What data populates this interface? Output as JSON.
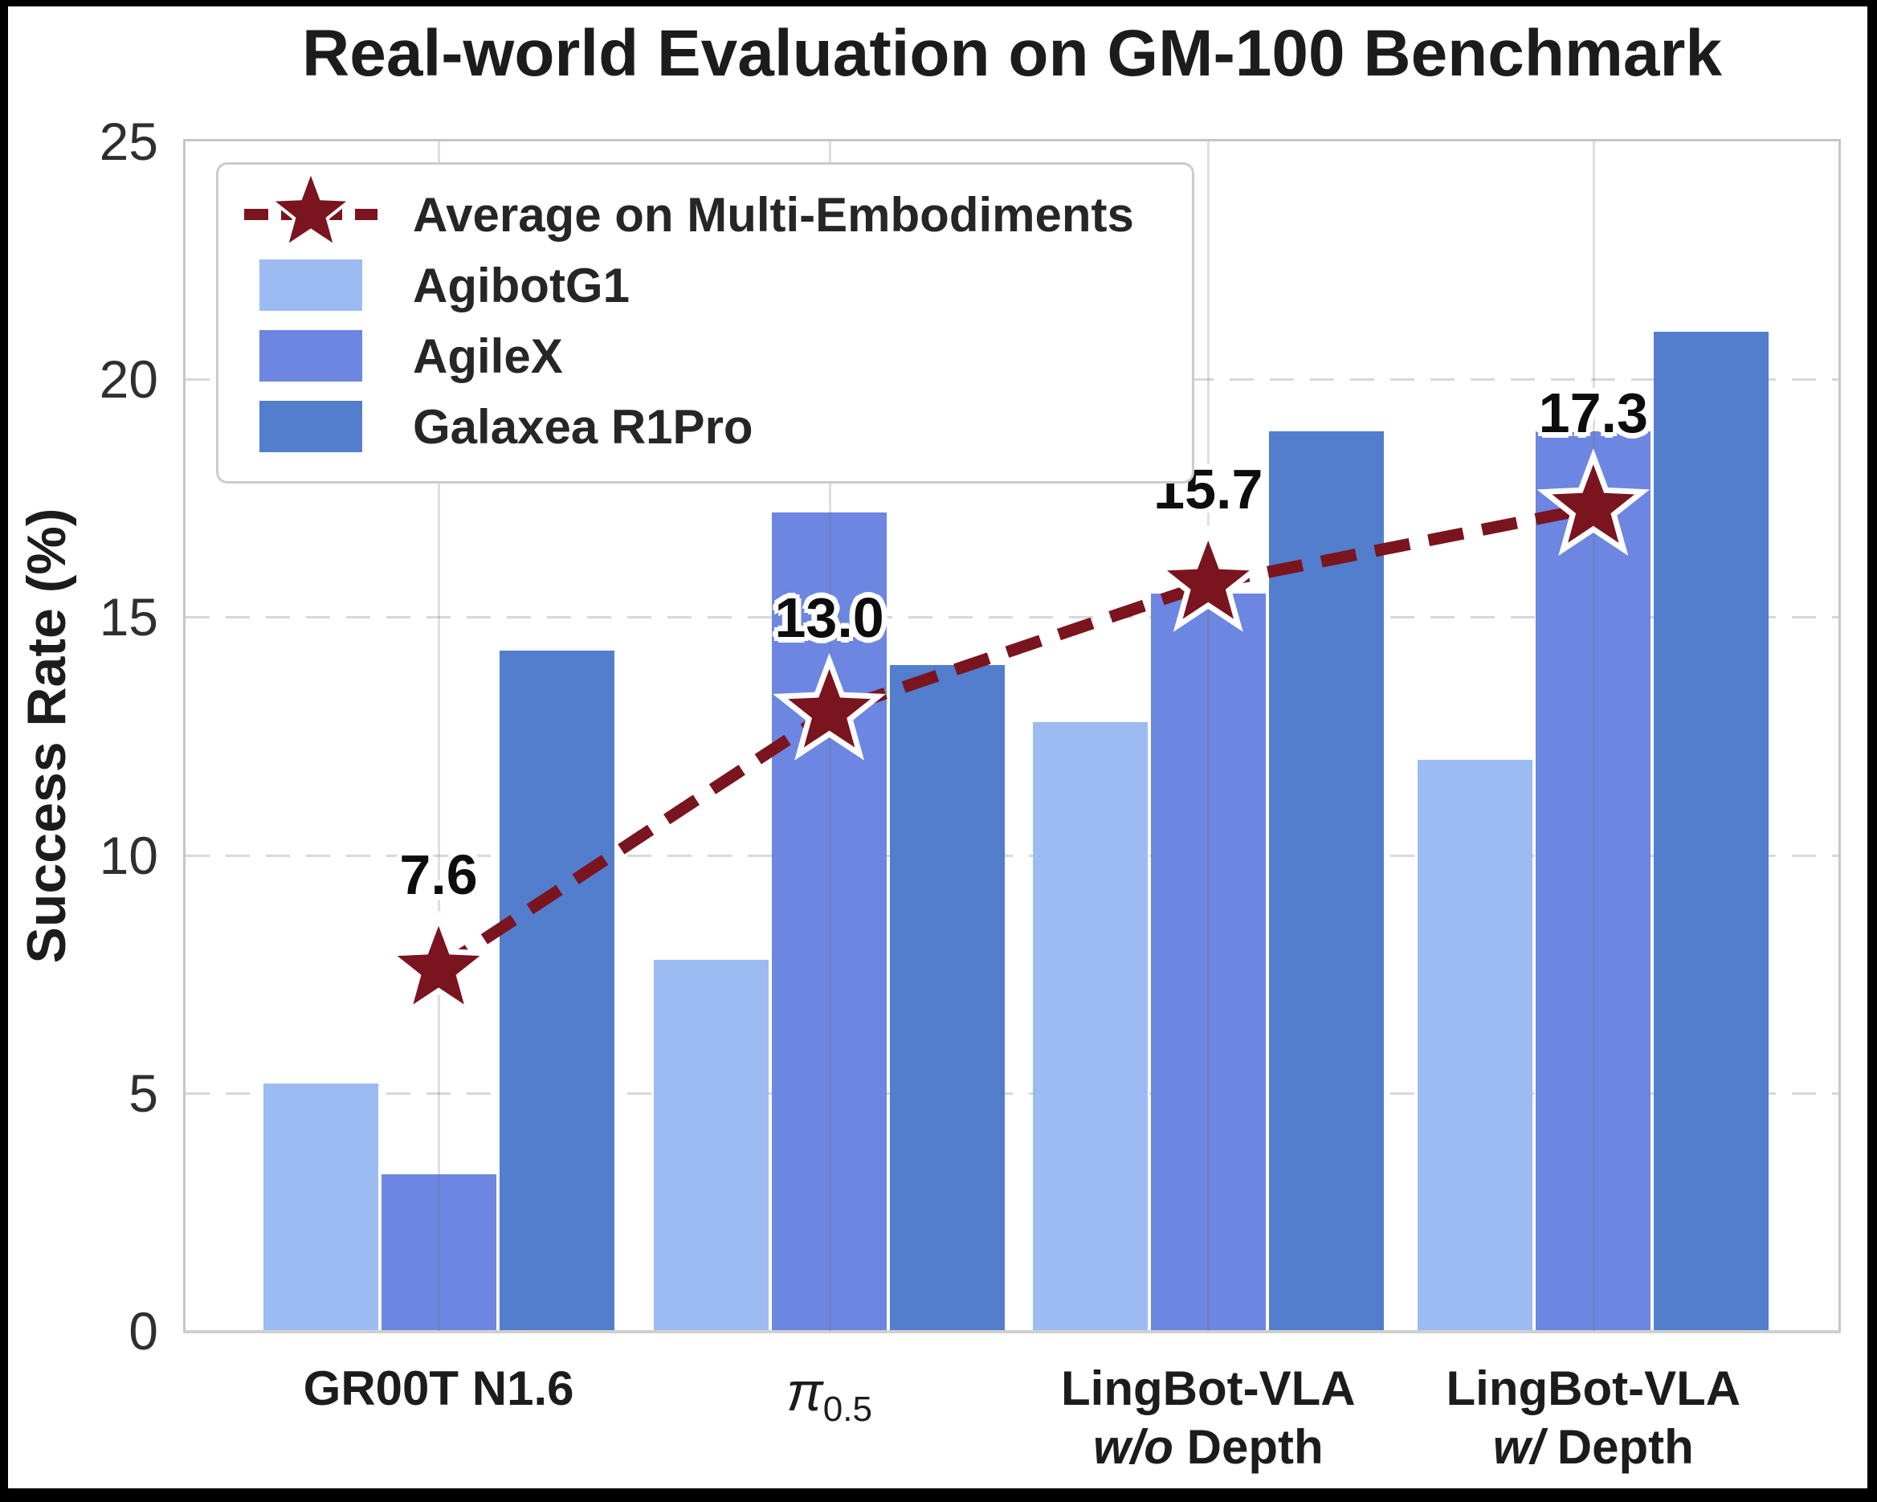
{
  "title": "Real-world Evaluation on GM-100 Benchmark",
  "chart_data": {
    "type": "bar",
    "title": "Real-world Evaluation on GM-100 Benchmark",
    "xlabel": "",
    "ylabel": "Success Rate (%)",
    "ylim": [
      0,
      25
    ],
    "yticks": [
      0,
      5,
      10,
      15,
      20,
      25
    ],
    "grid": {
      "horizontal": "dashed",
      "vertical_at_category_centers": true
    },
    "legend_position": "upper-left",
    "categories": [
      "GR00T N1.6",
      "π0.5",
      "LingBot-VLA w/o Depth",
      "LingBot-VLA w/ Depth"
    ],
    "category_label_lines": [
      [
        [
          {
            "t": "GR00T N1.6"
          }
        ]
      ],
      [
        [
          {
            "t": "π",
            "pi": true
          },
          {
            "t": "0.5",
            "sub": true
          }
        ]
      ],
      [
        [
          {
            "t": "LingBot-VLA"
          }
        ],
        [
          {
            "t": "w/o",
            "it": true
          },
          {
            "t": " Depth"
          }
        ]
      ],
      [
        [
          {
            "t": "LingBot-VLA"
          }
        ],
        [
          {
            "t": "w/",
            "it": true
          },
          {
            "t": " Depth"
          }
        ]
      ]
    ],
    "series": [
      {
        "name": "AgibotG1",
        "color": "#9dbbf3",
        "values": [
          5.2,
          7.8,
          12.8,
          12.0
        ]
      },
      {
        "name": "AgileX",
        "color": "#6c86e1",
        "values": [
          3.3,
          17.2,
          15.5,
          18.9
        ]
      },
      {
        "name": "Galaxea R1Pro",
        "color": "#527ecd",
        "values": [
          14.3,
          14.0,
          18.9,
          21.0
        ]
      }
    ],
    "average_line": {
      "name": "Average on Multi-Embodiments",
      "color": "#7a141f",
      "line_style": "dashed",
      "marker": "star",
      "marker_edge_color": "#ffffff",
      "values": [
        7.6,
        13.0,
        15.7,
        17.3
      ],
      "labels": [
        "7.6",
        "13.0",
        "15.7",
        "17.3"
      ]
    }
  },
  "colors": {
    "frame_background": "#000000",
    "figure_background": "#ffffff",
    "title_text": "#1c1c1c",
    "tick_text": "#2f2f2f",
    "spine": "#c6c6c6",
    "gridline": "#d8d8d8"
  }
}
